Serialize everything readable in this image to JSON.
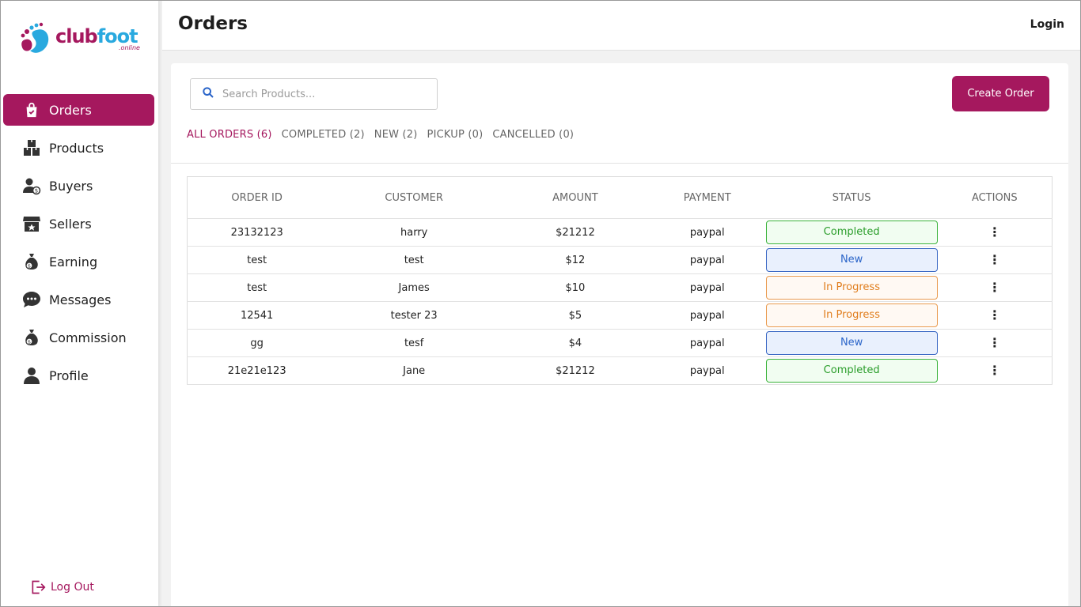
{
  "brand": {
    "name_part1": "club",
    "name_part2": "foot",
    "sub": ".online"
  },
  "sidebar": {
    "items": [
      {
        "label": "Orders",
        "icon": "shopping-bag-icon",
        "active": true
      },
      {
        "label": "Products",
        "icon": "boxes-icon"
      },
      {
        "label": "Buyers",
        "icon": "user-money-icon"
      },
      {
        "label": "Sellers",
        "icon": "store-icon"
      },
      {
        "label": "Earning",
        "icon": "money-bag-icon"
      },
      {
        "label": "Messages",
        "icon": "chat-icon"
      },
      {
        "label": "Commission",
        "icon": "money-bag-icon"
      },
      {
        "label": "Profile",
        "icon": "user-icon"
      }
    ],
    "logout": "Log Out"
  },
  "header": {
    "title": "Orders",
    "login": "Login"
  },
  "search": {
    "placeholder": "Search Products..."
  },
  "create_button": "Create Order",
  "tabs": [
    {
      "label": "ALL ORDERS (6)",
      "active": true
    },
    {
      "label": "COMPLETED (2)"
    },
    {
      "label": "NEW (2)"
    },
    {
      "label": "PICKUP (0)"
    },
    {
      "label": "CANCELLED (0)"
    }
  ],
  "table": {
    "columns": [
      "ORDER ID",
      "CUSTOMER",
      "AMOUNT",
      "PAYMENT",
      "STATUS",
      "ACTIONS"
    ],
    "rows": [
      {
        "order_id": "23132123",
        "customer": "harry",
        "amount": "$21212",
        "payment": "paypal",
        "status": "Completed"
      },
      {
        "order_id": "test",
        "customer": "test",
        "amount": "$12",
        "payment": "paypal",
        "status": "New"
      },
      {
        "order_id": "test",
        "customer": "James",
        "amount": "$10",
        "payment": "paypal",
        "status": "In Progress"
      },
      {
        "order_id": "12541",
        "customer": "tester 23",
        "amount": "$5",
        "payment": "paypal",
        "status": "In Progress"
      },
      {
        "order_id": "gg",
        "customer": "tesf",
        "amount": "$4",
        "payment": "paypal",
        "status": "New"
      },
      {
        "order_id": "21e21e123",
        "customer": "Jane",
        "amount": "$21212",
        "payment": "paypal",
        "status": "Completed"
      }
    ],
    "action_glyph": "⋮"
  },
  "colors": {
    "accent": "#a5185e",
    "brand_blue": "#29a9df"
  }
}
